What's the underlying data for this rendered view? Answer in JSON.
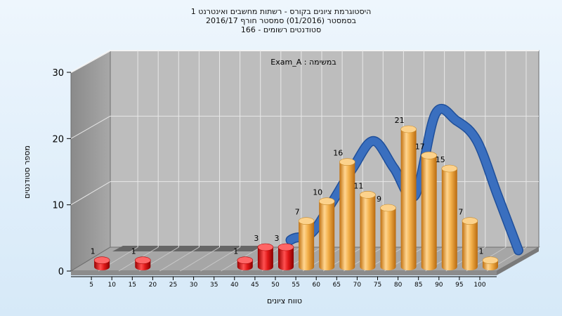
{
  "chart_data": {
    "type": "bar",
    "title_lines": [
      "היסטוגרמת ציונים בקורס - רשתות מחשבים ואינטרנט 1",
      "בסמסטר  (01/2016)  סמסטר חורף 2016/17",
      "סטודנטים רשומים - 166"
    ],
    "annotation": "במשימה : Exam_A",
    "xlabel": "טווח ציונים",
    "ylabel": "מספר סטודנטים",
    "y_ticks": [
      "0",
      "10",
      "20",
      "30"
    ],
    "ylim": [
      0,
      30
    ],
    "x_tick_labels": [
      "5",
      "10",
      "15",
      "20",
      "25",
      "30",
      "35",
      "40",
      "45",
      "50",
      "55",
      "60",
      "65",
      "70",
      "75",
      "80",
      "85",
      "90",
      "95",
      "100"
    ],
    "categories": [
      "5",
      "10",
      "15",
      "20",
      "25",
      "30",
      "35",
      "40",
      "45",
      "50",
      "55",
      "60",
      "65",
      "70",
      "75",
      "80",
      "85",
      "90",
      "95",
      "100"
    ],
    "values": [
      1,
      0,
      1,
      0,
      0,
      0,
      0,
      1,
      3,
      3,
      7,
      10,
      16,
      11,
      9,
      21,
      17,
      15,
      7,
      1
    ],
    "data_labels": [
      "1",
      "",
      "1",
      "",
      "",
      "",
      "",
      "1",
      "3",
      "3",
      "7",
      "10",
      "16",
      "11",
      "9",
      "21",
      "17",
      "15",
      "7",
      "1"
    ],
    "bar_colors": {
      "fail": "#dd1111",
      "pass": "#f0a030"
    },
    "fail_categories": [
      "5",
      "10",
      "15",
      "20",
      "25",
      "30",
      "35",
      "40",
      "45",
      "50"
    ],
    "curve_color": "#3a6fbf",
    "curve_values": [
      0,
      0,
      0,
      0,
      0,
      0,
      0,
      0,
      0,
      3.5,
      4.5,
      9,
      14,
      18,
      14,
      10,
      22,
      21,
      18,
      10,
      2
    ],
    "grid": true
  }
}
